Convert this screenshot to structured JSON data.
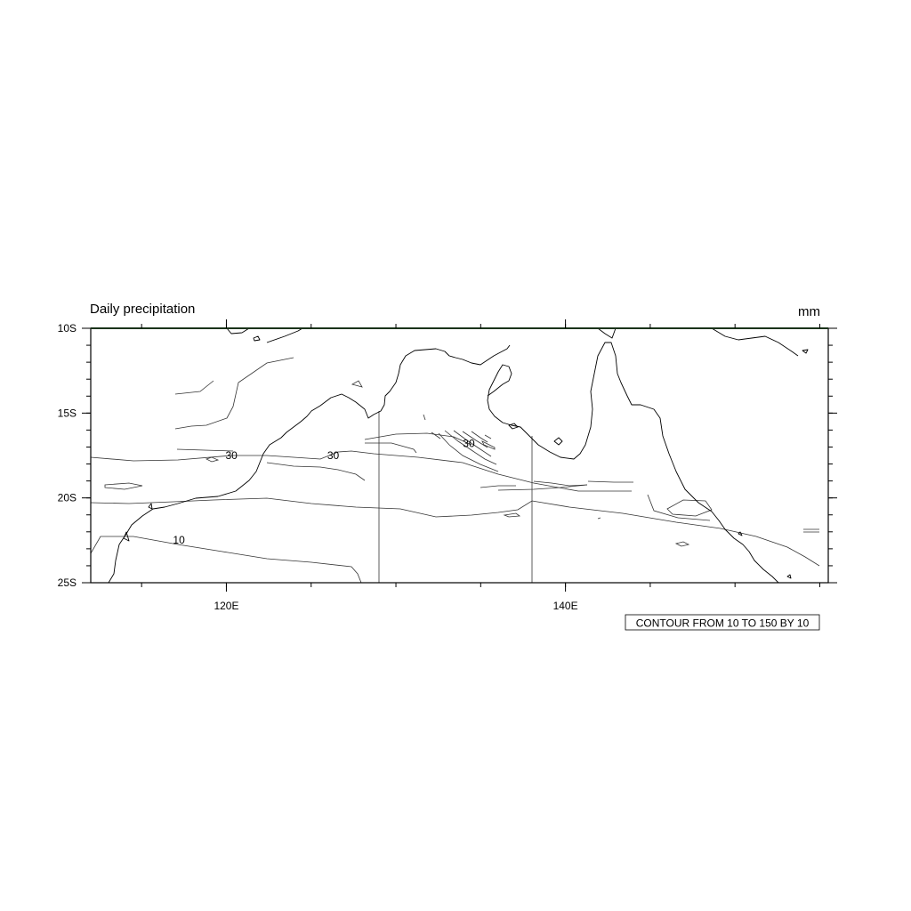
{
  "map": {
    "title": "Daily precipitation",
    "units": "mm",
    "contour_info": "CONTOUR FROM 10 TO 150 BY 10",
    "extent": {
      "lon_min": 112,
      "lon_max": 155.5,
      "lat_min": -25,
      "lat_max": -10
    },
    "lon_ticks": [
      {
        "value": 120,
        "label": "120E"
      },
      {
        "value": 140,
        "label": "140E"
      }
    ],
    "lat_ticks": [
      {
        "value": -10,
        "label": "10S"
      },
      {
        "value": -15,
        "label": "15S"
      },
      {
        "value": -20,
        "label": "20S"
      },
      {
        "value": -25,
        "label": "25S"
      }
    ],
    "contour_labels": [
      {
        "text": "30",
        "lon": 120.3,
        "lat": -17.7
      },
      {
        "text": "30",
        "lon": 126.3,
        "lat": -17.7
      },
      {
        "text": "30",
        "lon": 134.3,
        "lat": -17.0
      },
      {
        "text": "10",
        "lon": 117.2,
        "lat": -22.7
      }
    ],
    "colors": {
      "frame": "#000000",
      "coast": "#000000",
      "contour": "#333333",
      "background": "#ffffff"
    }
  }
}
